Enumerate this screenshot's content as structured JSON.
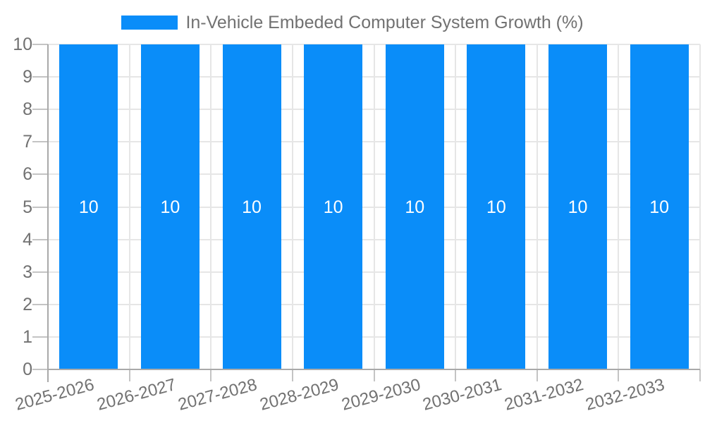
{
  "legend": {
    "series_label": "In-Vehicle Embeded Computer System Growth (%)"
  },
  "chart_data": {
    "type": "bar",
    "title": "In-Vehicle Embeded Computer System Growth (%)",
    "categories": [
      "2025-2026",
      "2026-2027",
      "2027-2028",
      "2028-2029",
      "2029-2030",
      "2030-2031",
      "2031-2032",
      "2032-2033"
    ],
    "values": [
      10,
      10,
      10,
      10,
      10,
      10,
      10,
      10
    ],
    "bar_value_labels": [
      "10",
      "10",
      "10",
      "10",
      "10",
      "10",
      "10",
      "10"
    ],
    "xlabel": "",
    "ylabel": "",
    "ylim": [
      0,
      10
    ],
    "yticks": [
      0,
      1,
      2,
      3,
      4,
      5,
      6,
      7,
      8,
      9,
      10
    ],
    "grid": true,
    "legend_position": "top-center"
  },
  "colors": {
    "bar": "#0a8df9",
    "gridline": "#e6e6e6",
    "axis": "#a9a9a9",
    "tick": "#c4c4c4",
    "text": "#717171",
    "bar_label": "#ffffff",
    "background": "#ffffff"
  }
}
